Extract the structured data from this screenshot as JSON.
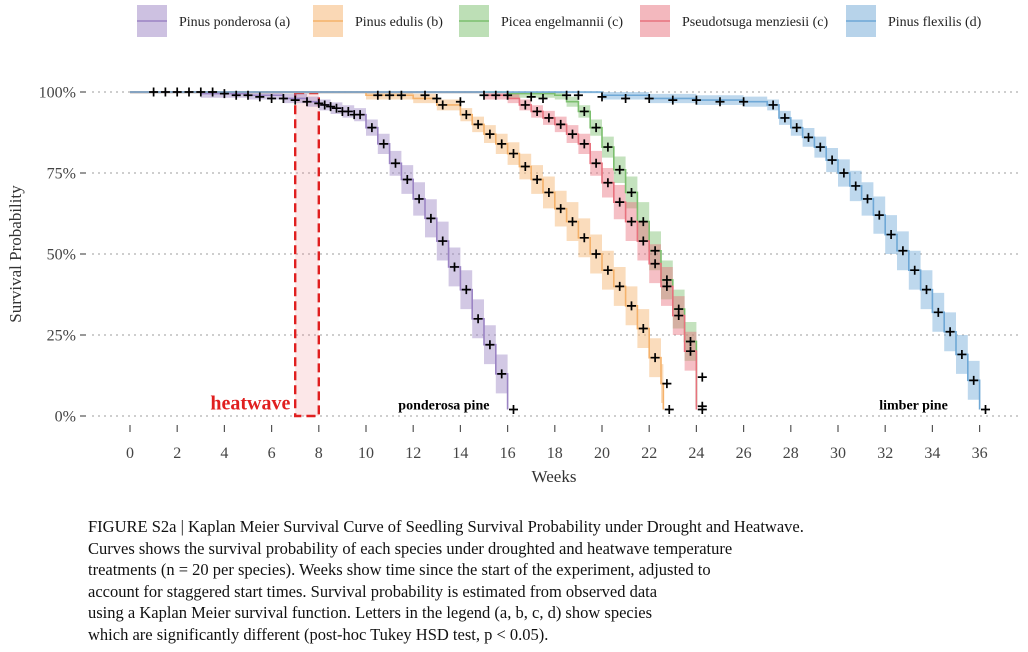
{
  "chart_data": {
    "type": "line",
    "xlabel": "Weeks",
    "ylabel": "Survival Probability",
    "xlim": [
      0,
      36
    ],
    "ylim": [
      0,
      1
    ],
    "x_ticks": [
      0,
      2,
      4,
      6,
      8,
      10,
      12,
      14,
      16,
      18,
      20,
      22,
      24,
      26,
      28,
      30,
      32,
      34,
      36
    ],
    "x_tick_labels": [
      "0",
      "2",
      "4",
      "6",
      "8",
      "10",
      "12",
      "14",
      "16",
      "18",
      "20",
      "22",
      "24",
      "26",
      "28",
      "30",
      "32",
      "34",
      "36"
    ],
    "y_ticks": [
      0,
      0.25,
      0.5,
      0.75,
      1
    ],
    "y_tick_labels": [
      "0%",
      "25%",
      "50%",
      "75%",
      "100%"
    ],
    "grid": "horizontal dotted",
    "legend_position": "top",
    "confidence_band": true,
    "series": [
      {
        "name": "Pinus ponderosa (a)",
        "color": "#9b84c4",
        "steps": [
          [
            0,
            1
          ],
          [
            3,
            0.995
          ],
          [
            5,
            0.99
          ],
          [
            6.5,
            0.98
          ],
          [
            7.5,
            0.97
          ],
          [
            8,
            0.96
          ],
          [
            8.5,
            0.95
          ],
          [
            9,
            0.94
          ],
          [
            9.5,
            0.93
          ],
          [
            10,
            0.89
          ],
          [
            10.5,
            0.84
          ],
          [
            11,
            0.78
          ],
          [
            11.5,
            0.73
          ],
          [
            12,
            0.67
          ],
          [
            12.5,
            0.61
          ],
          [
            13,
            0.54
          ],
          [
            13.5,
            0.46
          ],
          [
            14,
            0.39
          ],
          [
            14.5,
            0.3
          ],
          [
            15,
            0.22
          ],
          [
            15.5,
            0.13
          ],
          [
            16,
            0.02
          ]
        ],
        "end": 16
      },
      {
        "name": "Pinus edulis (b)",
        "color": "#f5b26b",
        "steps": [
          [
            0,
            1
          ],
          [
            10,
            0.99
          ],
          [
            12,
            0.98
          ],
          [
            13,
            0.96
          ],
          [
            14,
            0.93
          ],
          [
            14.5,
            0.9
          ],
          [
            15,
            0.87
          ],
          [
            15.5,
            0.84
          ],
          [
            16,
            0.81
          ],
          [
            16.5,
            0.77
          ],
          [
            17,
            0.73
          ],
          [
            17.5,
            0.69
          ],
          [
            18,
            0.64
          ],
          [
            18.5,
            0.6
          ],
          [
            19,
            0.55
          ],
          [
            19.5,
            0.5
          ],
          [
            20,
            0.45
          ],
          [
            20.5,
            0.4
          ],
          [
            21,
            0.34
          ],
          [
            21.5,
            0.27
          ],
          [
            22,
            0.18
          ],
          [
            22.5,
            0.1
          ],
          [
            22.6,
            0.02
          ]
        ],
        "end": 22.6
      },
      {
        "name": "Picea engelmannii (c)",
        "color": "#7cbf6e",
        "steps": [
          [
            0,
            1
          ],
          [
            16,
            0.995
          ],
          [
            18,
            0.99
          ],
          [
            18.5,
            0.97
          ],
          [
            19,
            0.94
          ],
          [
            19.5,
            0.89
          ],
          [
            20,
            0.83
          ],
          [
            20.5,
            0.76
          ],
          [
            21,
            0.69
          ],
          [
            21.5,
            0.6
          ],
          [
            22,
            0.51
          ],
          [
            22.5,
            0.42
          ],
          [
            23,
            0.33
          ],
          [
            23.5,
            0.23
          ],
          [
            24,
            0.12
          ],
          [
            24,
            0.03
          ]
        ],
        "end": 24
      },
      {
        "name": "Pseudotsuga menziesii (c)",
        "color": "#e8727e",
        "steps": [
          [
            0,
            1
          ],
          [
            15,
            0.99
          ],
          [
            16,
            0.98
          ],
          [
            16.5,
            0.96
          ],
          [
            17,
            0.94
          ],
          [
            17.5,
            0.92
          ],
          [
            18,
            0.9
          ],
          [
            18.5,
            0.87
          ],
          [
            19,
            0.84
          ],
          [
            19.5,
            0.78
          ],
          [
            20,
            0.72
          ],
          [
            20.5,
            0.66
          ],
          [
            21,
            0.6
          ],
          [
            21.5,
            0.54
          ],
          [
            22,
            0.47
          ],
          [
            22.5,
            0.4
          ],
          [
            23,
            0.31
          ],
          [
            23.5,
            0.2
          ],
          [
            24,
            0.02
          ]
        ],
        "end": 24
      },
      {
        "name": "Pinus flexilis (d)",
        "color": "#6fa8d6",
        "steps": [
          [
            0,
            1
          ],
          [
            20,
            0.99
          ],
          [
            22,
            0.98
          ],
          [
            24,
            0.975
          ],
          [
            26,
            0.97
          ],
          [
            27,
            0.96
          ],
          [
            27.5,
            0.92
          ],
          [
            28,
            0.89
          ],
          [
            28.5,
            0.86
          ],
          [
            29,
            0.83
          ],
          [
            29.5,
            0.79
          ],
          [
            30,
            0.75
          ],
          [
            30.5,
            0.71
          ],
          [
            31,
            0.67
          ],
          [
            31.5,
            0.62
          ],
          [
            32,
            0.56
          ],
          [
            32.5,
            0.51
          ],
          [
            33,
            0.45
          ],
          [
            33.5,
            0.39
          ],
          [
            34,
            0.32
          ],
          [
            34.5,
            0.26
          ],
          [
            35,
            0.19
          ],
          [
            35.5,
            0.11
          ],
          [
            36,
            0.02
          ]
        ],
        "end": 36
      }
    ],
    "censor_points": [
      [
        1,
        1
      ],
      [
        1.5,
        1
      ],
      [
        2,
        1
      ],
      [
        2.5,
        1
      ],
      [
        3,
        1
      ],
      [
        3.5,
        1
      ],
      [
        4,
        0.995
      ],
      [
        4.5,
        0.99
      ],
      [
        5,
        0.99
      ],
      [
        5.5,
        0.985
      ],
      [
        6,
        0.98
      ],
      [
        6.5,
        0.98
      ],
      [
        7,
        0.975
      ],
      [
        7.5,
        0.97
      ],
      [
        8,
        0.965
      ],
      [
        8.5,
        0.955
      ],
      [
        9,
        0.94
      ],
      [
        9.5,
        0.93
      ],
      [
        10.5,
        0.99
      ],
      [
        11,
        0.99
      ],
      [
        11.5,
        0.99
      ],
      [
        12.5,
        0.99
      ],
      [
        13,
        0.98
      ],
      [
        14,
        0.97
      ],
      [
        15,
        0.99
      ],
      [
        15.5,
        0.99
      ],
      [
        16,
        0.99
      ],
      [
        17,
        0.985
      ],
      [
        17.5,
        0.98
      ],
      [
        18.5,
        0.99
      ],
      [
        19,
        0.99
      ],
      [
        20,
        0.985
      ],
      [
        21,
        0.98
      ],
      [
        22,
        0.98
      ],
      [
        23,
        0.975
      ],
      [
        24,
        0.975
      ],
      [
        25,
        0.97
      ],
      [
        26,
        0.97
      ]
    ],
    "annotations": [
      {
        "text": "heatwave",
        "x": 5.1,
        "y": 0.035,
        "color": "#e01f1f"
      },
      {
        "text": "ponderosa pine",
        "x": 13.3,
        "y": 0.035,
        "color": "#000000"
      },
      {
        "text": "limber pine",
        "x": 33.2,
        "y": 0.035,
        "color": "#000000"
      }
    ],
    "heatwave_window": {
      "x_start": 7,
      "x_end": 8
    }
  },
  "caption": {
    "lines": [
      "FIGURE S2a | Kaplan Meier Survival Curve of Seedling Survival Probability under Drought and Heatwave.",
      "Curves shows the survival probability of each species under droughted and heatwave temperature",
      "treatments (n = 20 per species). Weeks show time since the start of the experiment, adjusted to",
      "account for staggered start times. Survival probability is estimated from observed data",
      "using a Kaplan Meier survival function. Letters in the legend (a, b, c, d) show species",
      "which are significantly different (post-hoc Tukey HSD test, p < 0.05)."
    ]
  }
}
